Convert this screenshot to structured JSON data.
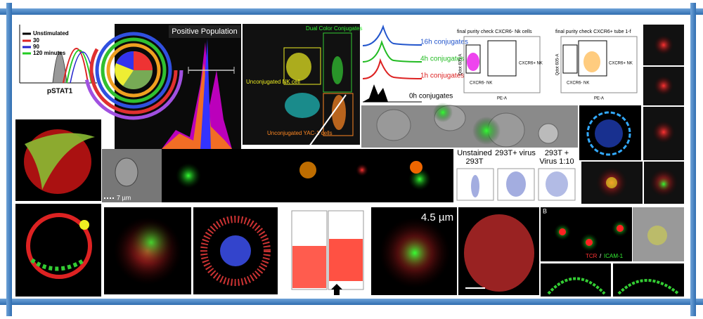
{
  "histogram_panel": {
    "legend": [
      "Unstimulated",
      "30",
      "90",
      "120 minutes"
    ],
    "axis_label": "pSTAT1"
  },
  "population_panel": {
    "title": "Positive Population"
  },
  "scatter_panel": {
    "dual": "Dual Color Conjugates",
    "nk": "Unconjugated NK cell",
    "yac": "Unconjugated YAC-1 cells"
  },
  "conjugate_panel": {
    "labels": [
      "16h conjugates",
      "4h conjugates",
      "1h conjugates",
      "0h conjugates"
    ]
  },
  "purity_panels": [
    {
      "title": "final purity check CXCR6- Nk cells",
      "y_label": "Qdot 605-A",
      "x_label": "PE-A",
      "pos": "CXCR6+ NK",
      "neg": "CXCR6- NK"
    },
    {
      "title": "final purity check CXCR6+ tube 1-f",
      "y_label": "Qdot 605-A",
      "x_label": "PE-A",
      "pos": "CXCR6+ NK",
      "neg": "CXCR6- NK"
    }
  ],
  "strip_panel": {
    "scale": "7 µm"
  },
  "virus_panel": {
    "labels": [
      "Unstained 293T",
      "293T+ virus",
      "293T + Virus 1:10"
    ]
  },
  "bottom_panels": {
    "scale": "4.5 µm",
    "panel_letter": "B",
    "stain_tcr": "TCR",
    "stain_icam": "ICAM-1"
  }
}
